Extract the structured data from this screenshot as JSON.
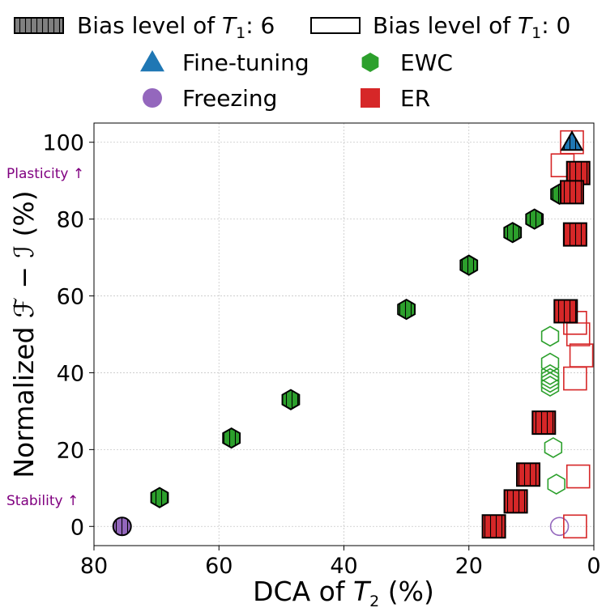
{
  "chart_data": {
    "type": "scatter",
    "xlabel_main": "DCA of ",
    "xlabel_var": "T",
    "xlabel_sub": "2",
    "xlabel_unit": " (%)",
    "ylabel_pre": "Normalized ",
    "ylabel_math": "ℱ − ℐ",
    "ylabel_unit": " (%)",
    "xlim": [
      80,
      0
    ],
    "ylim": [
      -5,
      105
    ],
    "x_ticks": [
      80,
      60,
      40,
      20,
      0
    ],
    "y_ticks": [
      0,
      20,
      40,
      60,
      80,
      100
    ],
    "x_inverted": true,
    "grid": true,
    "annotations": {
      "plasticity": "Plasticity ↑",
      "stability": "Stability ↑"
    },
    "bias_legend": {
      "filled_label": "Bias level of ",
      "filled_var": "T",
      "filled_sub": "1",
      "filled_value": ": 6",
      "empty_label": "Bias level of ",
      "empty_var": "T",
      "empty_sub": "1",
      "empty_value": ": 0"
    },
    "series": [
      {
        "name": "Fine-tuning",
        "marker": "triangle",
        "color": "#1f77b4",
        "bias6": [
          [
            3.5,
            100
          ]
        ],
        "bias0": [
          [
            3.5,
            100
          ]
        ]
      },
      {
        "name": "Freezing",
        "marker": "circle",
        "color": "#9467bd",
        "bias6": [
          [
            75.5,
            0
          ]
        ],
        "bias0": [
          [
            5.5,
            0
          ]
        ]
      },
      {
        "name": "EWC",
        "marker": "hexagon",
        "color": "#2ca02c",
        "bias6": [
          [
            69.5,
            7.5
          ],
          [
            58,
            23
          ],
          [
            48.5,
            33
          ],
          [
            30,
            56.5
          ],
          [
            20,
            68
          ],
          [
            13,
            76.5
          ],
          [
            9.5,
            80
          ],
          [
            5.5,
            86.5
          ]
        ],
        "bias0": [
          [
            7,
            49.5
          ],
          [
            7,
            42.5
          ],
          [
            7,
            39.5
          ],
          [
            7,
            38.5
          ],
          [
            7,
            37.5
          ],
          [
            7,
            36.5
          ],
          [
            6.5,
            20.5
          ],
          [
            6,
            11
          ]
        ]
      },
      {
        "name": "ER",
        "marker": "square",
        "color": "#d62728",
        "bias6": [
          [
            2.5,
            92
          ],
          [
            3.5,
            87
          ],
          [
            3,
            76
          ],
          [
            4.5,
            56
          ],
          [
            8,
            27
          ],
          [
            10.5,
            13.5
          ],
          [
            12.5,
            6.5
          ],
          [
            16,
            0
          ]
        ],
        "bias0": [
          [
            3.5,
            100
          ],
          [
            5,
            94
          ],
          [
            3,
            53
          ],
          [
            2.5,
            50
          ],
          [
            2,
            44.5
          ],
          [
            3,
            38.5
          ],
          [
            2.5,
            13
          ],
          [
            3,
            0
          ]
        ]
      }
    ]
  }
}
